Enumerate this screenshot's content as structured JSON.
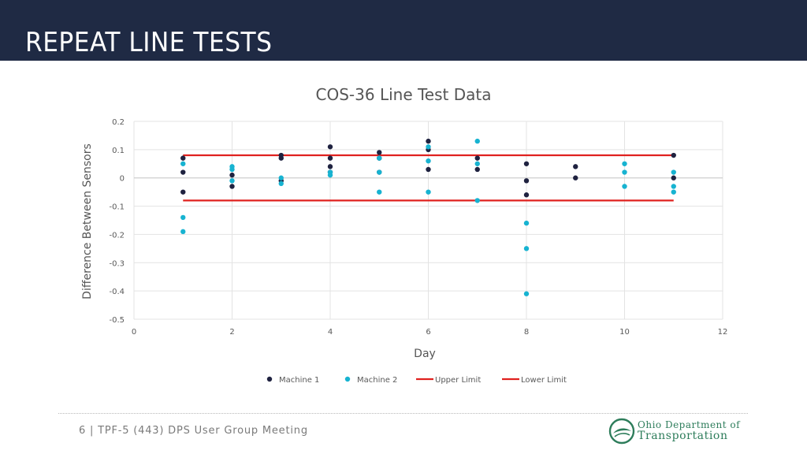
{
  "slide": {
    "title": "REPEAT LINE TESTS",
    "footer": "6 | TPF-5 (443) DPS User Group Meeting",
    "logo_line1": "Ohio Department of",
    "logo_line2": "Transportation"
  },
  "chart_data": {
    "type": "scatter",
    "title": "COS-36 Line Test Data",
    "xlabel": "Day",
    "ylabel": "Difference Between Sensors",
    "xlim": [
      0,
      12
    ],
    "ylim": [
      -0.5,
      0.2
    ],
    "xticks": [
      0,
      2,
      4,
      6,
      8,
      10,
      12
    ],
    "yticks": [
      0.2,
      0.1,
      0,
      -0.1,
      -0.2,
      -0.3,
      -0.4,
      -0.5
    ],
    "grid": true,
    "legend_position": "bottom",
    "series": [
      {
        "name": "Machine 1",
        "kind": "scatter",
        "color": "#1f2240",
        "points": [
          [
            1,
            0.07
          ],
          [
            1,
            0.02
          ],
          [
            1,
            -0.05
          ],
          [
            2,
            0.01
          ],
          [
            2,
            -0.03
          ],
          [
            3,
            0.08
          ],
          [
            3,
            0.07
          ],
          [
            3,
            -0.01
          ],
          [
            4,
            0.11
          ],
          [
            4,
            0.07
          ],
          [
            4,
            0.04
          ],
          [
            4,
            0.02
          ],
          [
            5,
            0.09
          ],
          [
            5,
            0.07
          ],
          [
            5,
            0.02
          ],
          [
            6,
            0.13
          ],
          [
            6,
            0.1
          ],
          [
            6,
            0.03
          ],
          [
            7,
            0.07
          ],
          [
            7,
            0.03
          ],
          [
            8,
            0.05
          ],
          [
            8,
            -0.01
          ],
          [
            8,
            -0.06
          ],
          [
            9,
            0.04
          ],
          [
            9,
            0.0
          ],
          [
            11,
            0.08
          ],
          [
            11,
            0.0
          ]
        ]
      },
      {
        "name": "Machine 2",
        "kind": "scatter",
        "color": "#17b3d1",
        "points": [
          [
            1,
            0.05
          ],
          [
            1,
            -0.14
          ],
          [
            1,
            -0.19
          ],
          [
            2,
            0.04
          ],
          [
            2,
            0.03
          ],
          [
            2,
            -0.01
          ],
          [
            3,
            0.0
          ],
          [
            3,
            -0.02
          ],
          [
            4,
            0.02
          ],
          [
            4,
            0.01
          ],
          [
            5,
            0.07
          ],
          [
            5,
            0.02
          ],
          [
            5,
            -0.05
          ],
          [
            6,
            0.11
          ],
          [
            6,
            0.06
          ],
          [
            6,
            -0.05
          ],
          [
            7,
            0.13
          ],
          [
            7,
            0.05
          ],
          [
            7,
            -0.08
          ],
          [
            8,
            -0.16
          ],
          [
            8,
            -0.25
          ],
          [
            8,
            -0.41
          ],
          [
            10,
            0.05
          ],
          [
            10,
            0.02
          ],
          [
            10,
            -0.03
          ],
          [
            11,
            0.02
          ],
          [
            11,
            -0.03
          ],
          [
            11,
            -0.05
          ]
        ]
      },
      {
        "name": "Upper Limit",
        "kind": "line",
        "color": "#e0211f",
        "points": [
          [
            1,
            0.08
          ],
          [
            11,
            0.08
          ]
        ]
      },
      {
        "name": "Lower Limit",
        "kind": "line",
        "color": "#e0211f",
        "points": [
          [
            1,
            -0.08
          ],
          [
            11,
            -0.08
          ]
        ]
      }
    ]
  }
}
